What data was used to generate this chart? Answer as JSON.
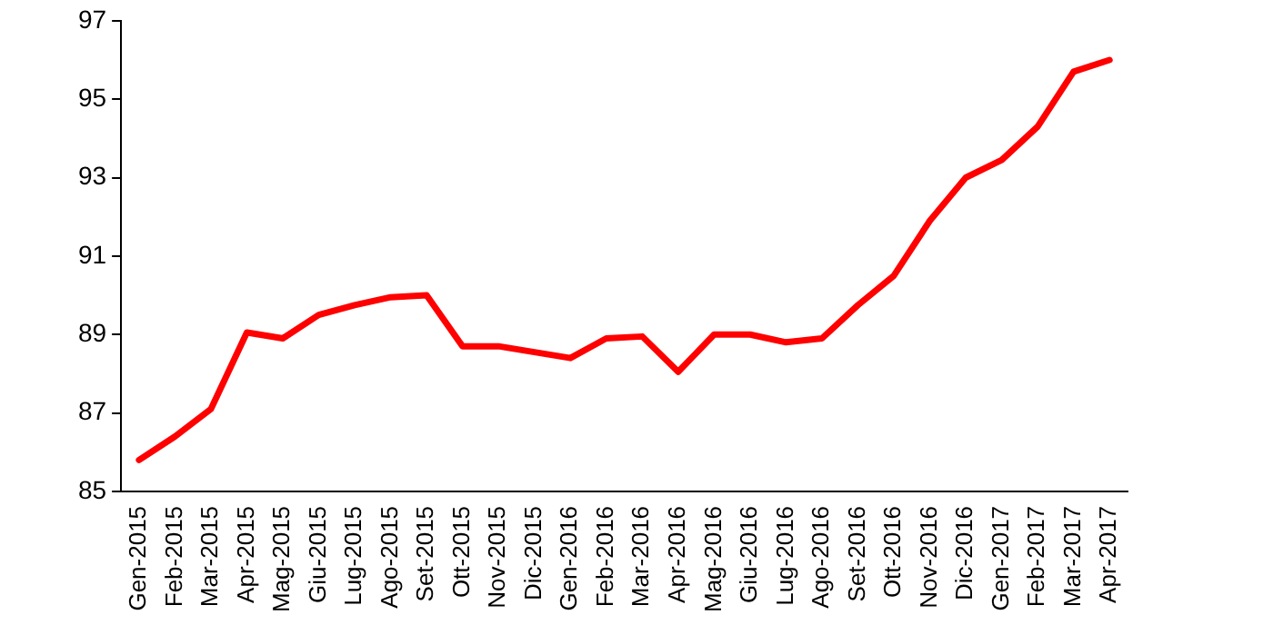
{
  "chart_data": {
    "type": "line",
    "categories": [
      "Gen-2015",
      "Feb-2015",
      "Mar-2015",
      "Apr-2015",
      "Mag-2015",
      "Giu-2015",
      "Lug-2015",
      "Ago-2015",
      "Set-2015",
      "Ott-2015",
      "Nov-2015",
      "Dic-2015",
      "Gen-2016",
      "Feb-2016",
      "Mar-2016",
      "Apr-2016",
      "Mag-2016",
      "Giu-2016",
      "Lug-2016",
      "Ago-2016",
      "Set-2016",
      "Ott-2016",
      "Nov-2016",
      "Dic-2016",
      "Gen-2017",
      "Feb-2017",
      "Mar-2017",
      "Apr-2017"
    ],
    "series": [
      {
        "color": "#ff0000",
        "values": [
          85.8,
          86.4,
          87.1,
          89.05,
          88.9,
          89.5,
          89.75,
          89.95,
          90.0,
          88.7,
          88.7,
          88.55,
          88.4,
          88.9,
          88.95,
          88.05,
          89.0,
          89.0,
          88.8,
          88.9,
          89.75,
          90.5,
          91.9,
          93.0,
          93.45,
          94.3,
          95.7,
          96.0
        ]
      }
    ],
    "ylim": [
      85,
      97
    ],
    "yticks": [
      85,
      87,
      89,
      91,
      93,
      95,
      97
    ],
    "grid": false,
    "legend": false,
    "marker": "none",
    "line_style": "solid"
  }
}
